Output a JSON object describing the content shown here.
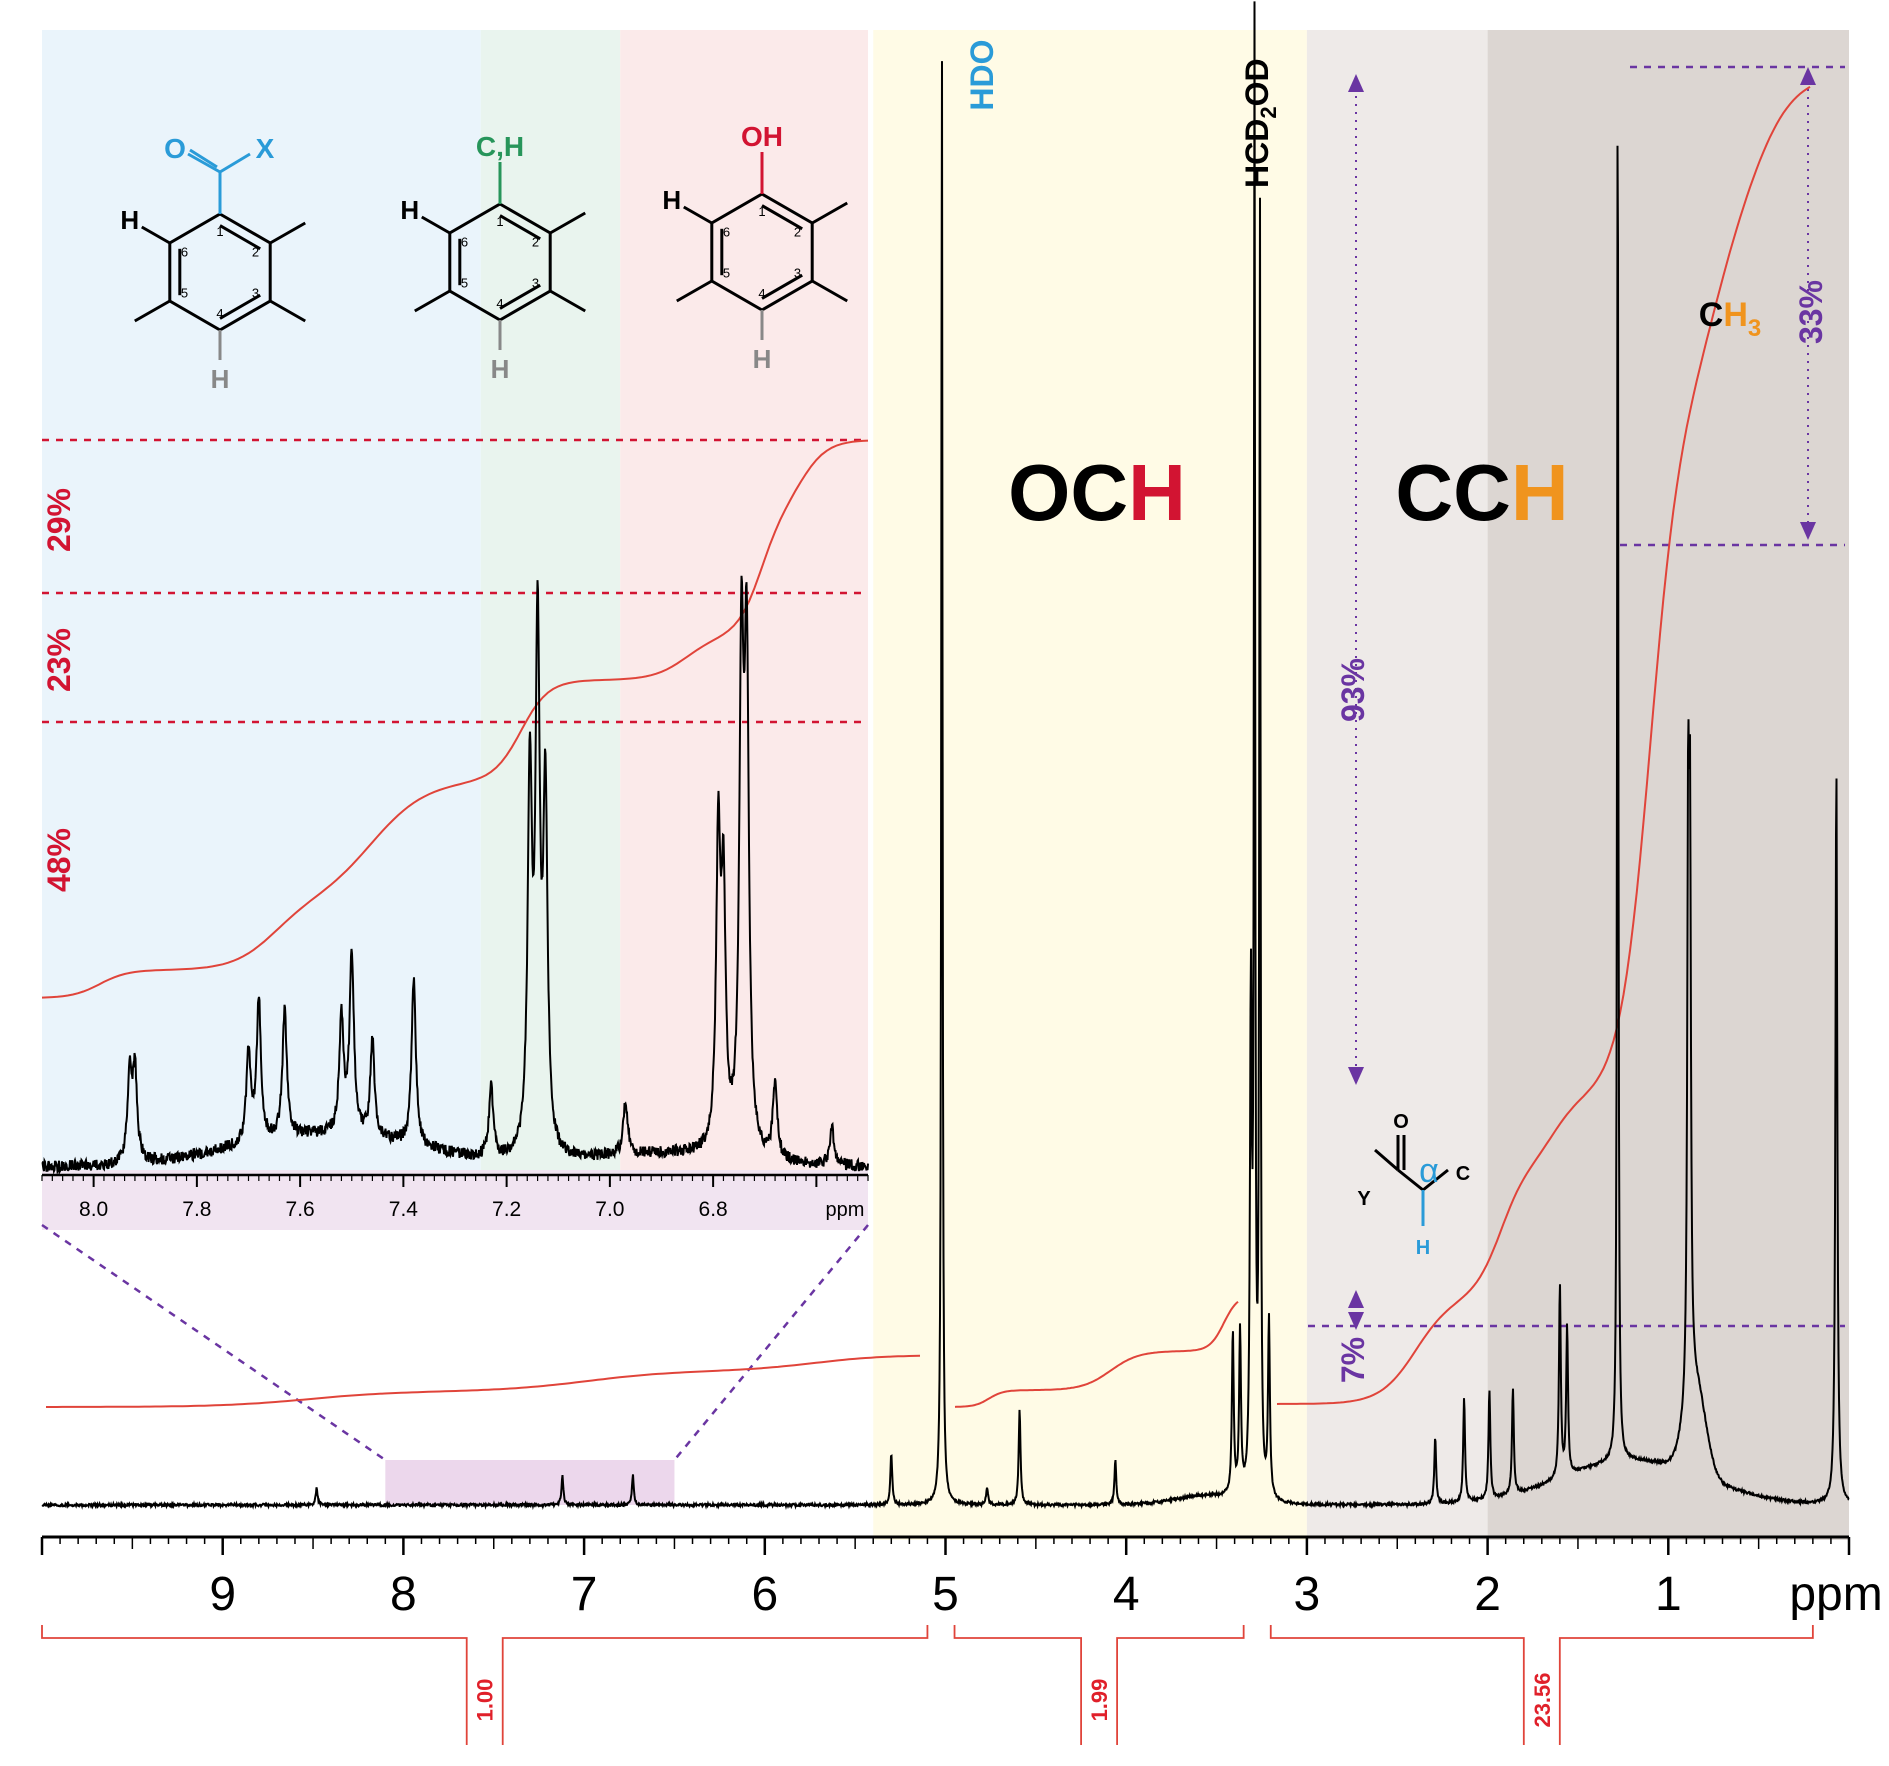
{
  "chart_data": [
    {
      "type": "line",
      "title": "",
      "xlabel": "ppm",
      "ylabel": "",
      "xlim": [
        10,
        0
      ],
      "x_direction": "reversed",
      "x_ticks": [
        "9",
        "8",
        "7",
        "6",
        "5",
        "4",
        "3",
        "2",
        "1"
      ],
      "grid": false,
      "regions": [
        {
          "label": "OCH",
          "label_parts": [
            "OC",
            "H"
          ],
          "from_ppm": 5.4,
          "to_ppm": 3.0,
          "color": "#fffbe6"
        },
        {
          "label": "CCH",
          "label_parts": [
            "CC",
            "H"
          ],
          "from_ppm": 3.0,
          "to_ppm": 2.0,
          "color": "#eeeae8"
        },
        {
          "label": "",
          "from_ppm": 2.0,
          "to_ppm": 0.0,
          "color": "#dcd6d2"
        }
      ],
      "peaks": [
        {
          "ppm": 8.48,
          "height": 0.012
        },
        {
          "ppm": 7.12,
          "height": 0.02
        },
        {
          "ppm": 6.73,
          "height": 0.02
        },
        {
          "ppm": 5.3,
          "height": 0.035
        },
        {
          "ppm": 5.02,
          "height": 1.0,
          "label": "HDO"
        },
        {
          "ppm": 4.77,
          "height": 0.012
        },
        {
          "ppm": 4.59,
          "height": 0.064
        },
        {
          "ppm": 4.06,
          "height": 0.03
        },
        {
          "ppm": 3.41,
          "height": 0.11
        },
        {
          "ppm": 3.37,
          "height": 0.11
        },
        {
          "ppm": 3.31,
          "height": 0.33
        },
        {
          "ppm": 3.29,
          "height": 0.97,
          "label": "HCD2OD"
        },
        {
          "ppm": 3.26,
          "height": 0.87
        },
        {
          "ppm": 3.21,
          "height": 0.12
        },
        {
          "ppm": 2.29,
          "height": 0.045
        },
        {
          "ppm": 2.13,
          "height": 0.07
        },
        {
          "ppm": 1.99,
          "height": 0.074
        },
        {
          "ppm": 1.86,
          "height": 0.072
        },
        {
          "ppm": 1.6,
          "height": 0.13
        },
        {
          "ppm": 1.56,
          "height": 0.1
        },
        {
          "ppm": 1.28,
          "height": 0.96
        },
        {
          "ppm": 0.89,
          "height": 0.37
        },
        {
          "ppm": 0.88,
          "height": 0.35
        },
        {
          "ppm": 0.07,
          "height": 0.5
        }
      ],
      "peak_labels": [
        "HDO",
        "HCD2OD"
      ],
      "integrals": [
        {
          "from_ppm": 10.0,
          "to_ppm": 5.1,
          "value": "1.00"
        },
        {
          "from_ppm": 4.95,
          "to_ppm": 3.35,
          "value": "1.99"
        },
        {
          "from_ppm": 3.2,
          "to_ppm": 0.2,
          "value": "23.56"
        }
      ],
      "annotations": [
        {
          "text": "93%",
          "description": "alpha-CH share of CCH"
        },
        {
          "text": "7%"
        },
        {
          "text": "33%"
        },
        {
          "text": "CH3",
          "label_parts": [
            "C",
            "H",
            "3"
          ]
        }
      ]
    },
    {
      "type": "line",
      "title": "",
      "xlabel": "ppm",
      "xlim": [
        8.1,
        6.5
      ],
      "x_direction": "reversed",
      "x_ticks": [
        "8.0",
        "7.8",
        "7.6",
        "7.4",
        "7.2",
        "7.0",
        "6.8"
      ],
      "regions": [
        {
          "label": "O=C-X aromatic",
          "from_ppm": 8.1,
          "to_ppm": 7.25,
          "color": "#eaf4fb"
        },
        {
          "label": "C,H aromatic",
          "from_ppm": 7.25,
          "to_ppm": 6.98,
          "color": "#e9f4ee"
        },
        {
          "label": "OH aromatic",
          "from_ppm": 6.98,
          "to_ppm": 6.5,
          "color": "#fbeaea"
        }
      ],
      "peaks": [
        {
          "ppm": 7.93,
          "height": 0.14
        },
        {
          "ppm": 7.92,
          "height": 0.14
        },
        {
          "ppm": 7.7,
          "height": 0.14
        },
        {
          "ppm": 7.68,
          "height": 0.22
        },
        {
          "ppm": 7.63,
          "height": 0.2
        },
        {
          "ppm": 7.52,
          "height": 0.18
        },
        {
          "ppm": 7.5,
          "height": 0.28
        },
        {
          "ppm": 7.46,
          "height": 0.15
        },
        {
          "ppm": 7.38,
          "height": 0.26
        },
        {
          "ppm": 7.23,
          "height": 0.11
        },
        {
          "ppm": 7.155,
          "height": 0.58
        },
        {
          "ppm": 7.14,
          "height": 0.8
        },
        {
          "ppm": 7.125,
          "height": 0.55
        },
        {
          "ppm": 6.97,
          "height": 0.08
        },
        {
          "ppm": 6.79,
          "height": 0.47
        },
        {
          "ppm": 6.78,
          "height": 0.38
        },
        {
          "ppm": 6.745,
          "height": 0.75
        },
        {
          "ppm": 6.735,
          "height": 0.74
        },
        {
          "ppm": 6.68,
          "height": 0.12
        },
        {
          "ppm": 6.57,
          "height": 0.06
        }
      ],
      "integral_percentages": [
        {
          "text": "48%",
          "region": "O=C-X aromatic"
        },
        {
          "text": "23%",
          "region": "C,H aromatic"
        },
        {
          "text": "29%",
          "region": "OH aromatic"
        }
      ]
    }
  ],
  "structures": [
    {
      "substituent": "X",
      "carbonyl_o": "O",
      "h_label": "H",
      "ring_numbers": [
        "1",
        "2",
        "3",
        "4",
        "5",
        "6"
      ],
      "substituent_color": "#2a9bd8"
    },
    {
      "substituent": "C,H",
      "h_label": "H",
      "ring_numbers": [
        "1",
        "2",
        "3",
        "4",
        "5",
        "6"
      ],
      "substituent_color": "#27955a"
    },
    {
      "substituent": "OH",
      "h_label": "H",
      "ring_numbers": [
        "1",
        "2",
        "3",
        "4",
        "5",
        "6"
      ],
      "substituent_color": "#d21432"
    }
  ],
  "alpha_structure": {
    "o_label": "O",
    "y_label": "Y",
    "alpha_label": "α",
    "c_label": "C",
    "h_label": "H"
  },
  "colors": {
    "spectrum": "#000000",
    "integral_curve": "#e0443a",
    "percent_red": "#d21432",
    "percent_purple": "#6a35a2",
    "hdo_blue": "#2a9bd8",
    "highlight_orange": "#f0941e",
    "zoom_band": "#ecd7ec"
  }
}
